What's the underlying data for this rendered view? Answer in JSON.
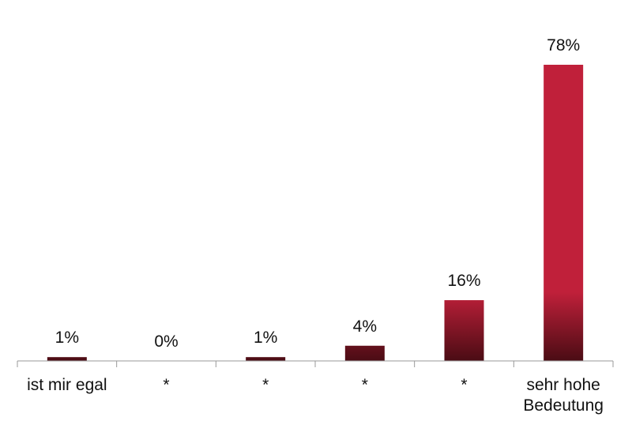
{
  "chart_data": {
    "type": "bar",
    "categories": [
      "ist mir egal",
      "*",
      "*",
      "*",
      "*",
      "sehr hohe Bedeutung"
    ],
    "values": [
      1,
      0,
      1,
      4,
      16,
      78
    ],
    "value_labels": [
      "1%",
      "0%",
      "1%",
      "4%",
      "16%",
      "78%"
    ],
    "color": "#c0203a"
  }
}
